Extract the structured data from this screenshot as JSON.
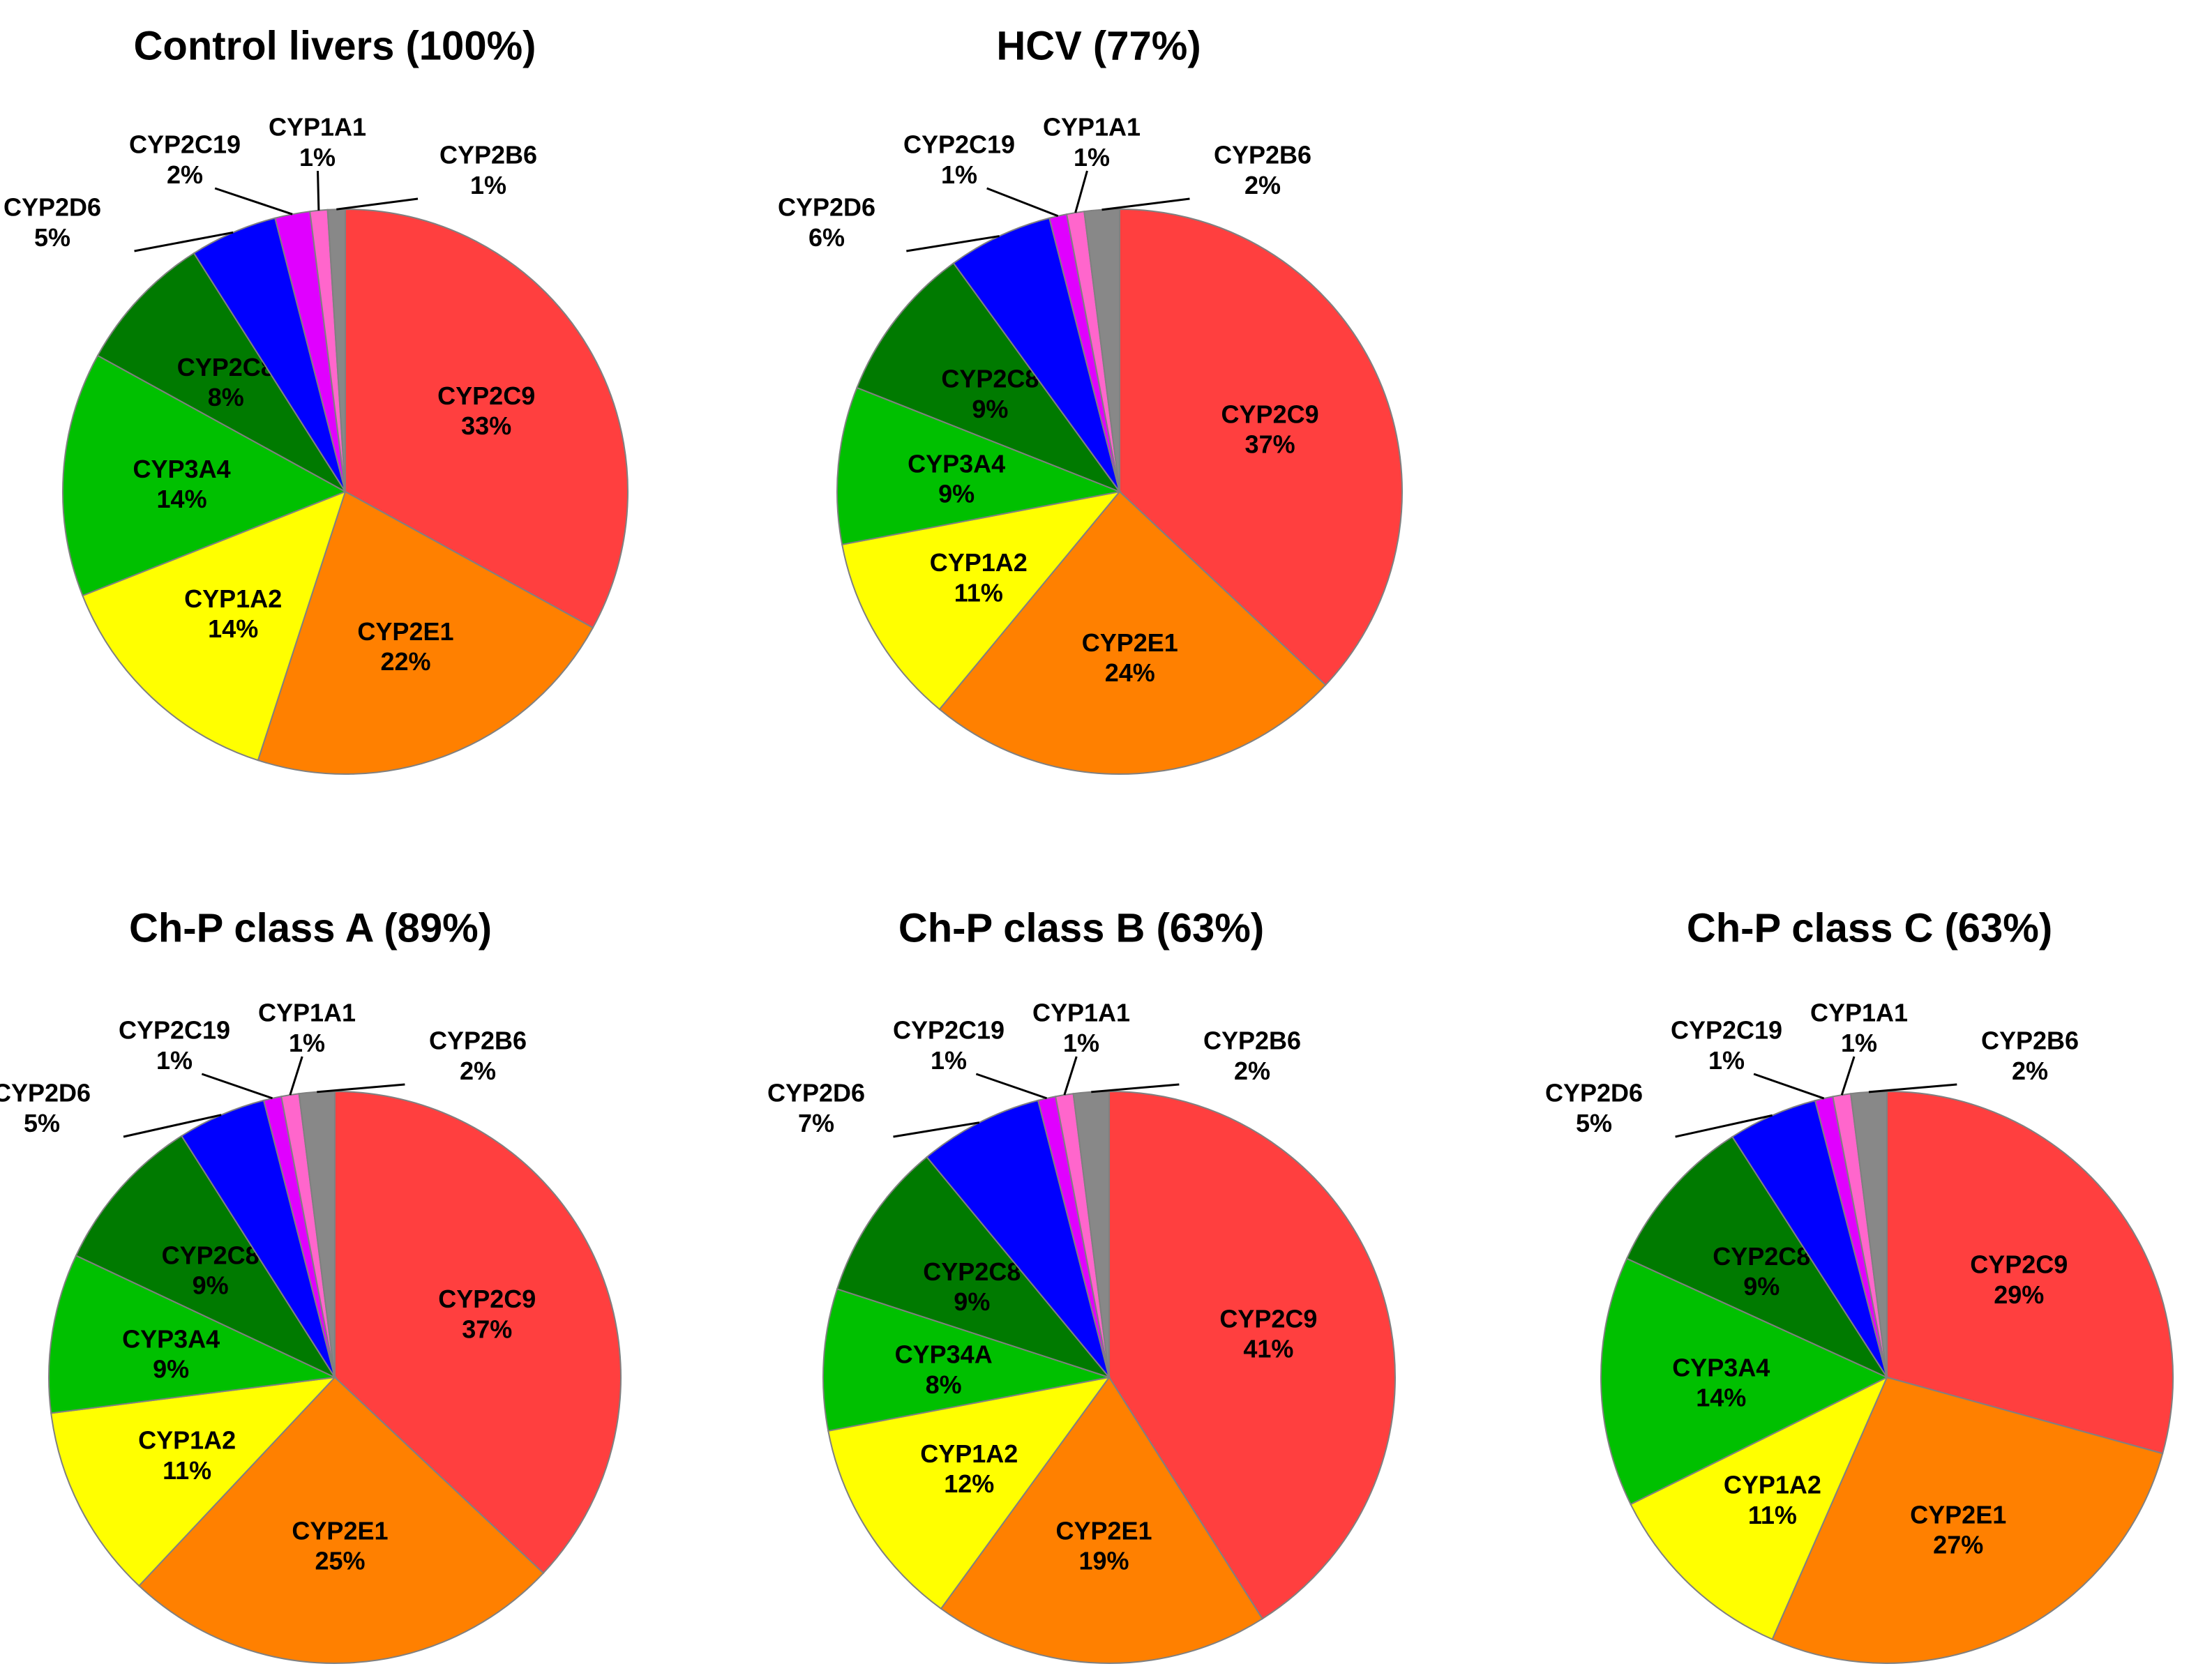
{
  "chart_data": [
    {
      "type": "pie",
      "title": "Control livers (100%)",
      "slices": [
        {
          "label": "CYP2C9",
          "value": 33,
          "value_label": "33%",
          "color": "#ff3f3f",
          "label_pos": "inside"
        },
        {
          "label": "CYP2E1",
          "value": 22,
          "value_label": "22%",
          "color": "#ff8000",
          "label_pos": "inside"
        },
        {
          "label": "CYP1A2",
          "value": 14,
          "value_label": "14%",
          "color": "#ffff00",
          "label_pos": "inside"
        },
        {
          "label": "CYP3A4",
          "value": 14,
          "value_label": "14%",
          "color": "#00c000",
          "label_pos": "inside"
        },
        {
          "label": "CYP2C8",
          "value": 8,
          "value_label": "8%",
          "color": "#007a00",
          "label_pos": "inside"
        },
        {
          "label": "CYP2D6",
          "value": 5,
          "value_label": "5%",
          "color": "#0000ff",
          "label_pos": "outside"
        },
        {
          "label": "CYP2C19",
          "value": 2,
          "value_label": "2%",
          "color": "#e000ff",
          "label_pos": "outside"
        },
        {
          "label": "CYP1A1",
          "value": 1,
          "value_label": "1%",
          "color": "#ff66cc",
          "label_pos": "outside"
        },
        {
          "label": "CYP2B6",
          "value": 1,
          "value_label": "1%",
          "color": "#888888",
          "label_pos": "outside"
        }
      ]
    },
    {
      "type": "pie",
      "title": "HCV (77%)",
      "slices": [
        {
          "label": "CYP2C9",
          "value": 37,
          "value_label": "37%",
          "color": "#ff3f3f",
          "label_pos": "inside"
        },
        {
          "label": "CYP2E1",
          "value": 24,
          "value_label": "24%",
          "color": "#ff8000",
          "label_pos": "inside"
        },
        {
          "label": "CYP1A2",
          "value": 11,
          "value_label": "11%",
          "color": "#ffff00",
          "label_pos": "inside"
        },
        {
          "label": "CYP3A4",
          "value": 9,
          "value_label": "9%",
          "color": "#00c000",
          "label_pos": "inside"
        },
        {
          "label": "CYP2C8",
          "value": 9,
          "value_label": "9%",
          "color": "#007a00",
          "label_pos": "inside"
        },
        {
          "label": "CYP2D6",
          "value": 6,
          "value_label": "6%",
          "color": "#0000ff",
          "label_pos": "outside"
        },
        {
          "label": "CYP2C19",
          "value": 1,
          "value_label": "1%",
          "color": "#e000ff",
          "label_pos": "outside"
        },
        {
          "label": "CYP1A1",
          "value": 1,
          "value_label": "1%",
          "color": "#ff66cc",
          "label_pos": "outside"
        },
        {
          "label": "CYP2B6",
          "value": 2,
          "value_label": "2%",
          "color": "#888888",
          "label_pos": "outside"
        }
      ]
    },
    {
      "type": "pie",
      "title": "Ch-P class A (89%)",
      "slices": [
        {
          "label": "CYP2C9",
          "value": 37,
          "value_label": "37%",
          "color": "#ff3f3f",
          "label_pos": "inside"
        },
        {
          "label": "CYP2E1",
          "value": 25,
          "value_label": "25%",
          "color": "#ff8000",
          "label_pos": "inside"
        },
        {
          "label": "CYP1A2",
          "value": 11,
          "value_label": "11%",
          "color": "#ffff00",
          "label_pos": "inside"
        },
        {
          "label": "CYP3A4",
          "value": 9,
          "value_label": "9%",
          "color": "#00c000",
          "label_pos": "inside"
        },
        {
          "label": "CYP2C8",
          "value": 9,
          "value_label": "9%",
          "color": "#007a00",
          "label_pos": "inside"
        },
        {
          "label": "CYP2D6",
          "value": 5,
          "value_label": "5%",
          "color": "#0000ff",
          "label_pos": "outside"
        },
        {
          "label": "CYP2C19",
          "value": 1,
          "value_label": "1%",
          "color": "#e000ff",
          "label_pos": "outside"
        },
        {
          "label": "CYP1A1",
          "value": 1,
          "value_label": "1%",
          "color": "#ff66cc",
          "label_pos": "outside"
        },
        {
          "label": "CYP2B6",
          "value": 2,
          "value_label": "2%",
          "color": "#888888",
          "label_pos": "outside"
        }
      ]
    },
    {
      "type": "pie",
      "title": "Ch-P class B (63%)",
      "slices": [
        {
          "label": "CYP2C9",
          "value": 41,
          "value_label": "41%",
          "color": "#ff3f3f",
          "label_pos": "inside"
        },
        {
          "label": "CYP2E1",
          "value": 19,
          "value_label": "19%",
          "color": "#ff8000",
          "label_pos": "inside"
        },
        {
          "label": "CYP1A2",
          "value": 12,
          "value_label": "12%",
          "color": "#ffff00",
          "label_pos": "inside"
        },
        {
          "label": "CYP34A",
          "value": 8,
          "value_label": "8%",
          "color": "#00c000",
          "label_pos": "inside"
        },
        {
          "label": "CYP2C8",
          "value": 9,
          "value_label": "9%",
          "color": "#007a00",
          "label_pos": "inside"
        },
        {
          "label": "CYP2D6",
          "value": 7,
          "value_label": "7%",
          "color": "#0000ff",
          "label_pos": "outside"
        },
        {
          "label": "CYP2C19",
          "value": 1,
          "value_label": "1%",
          "color": "#e000ff",
          "label_pos": "outside"
        },
        {
          "label": "CYP1A1",
          "value": 1,
          "value_label": "1%",
          "color": "#ff66cc",
          "label_pos": "outside"
        },
        {
          "label": "CYP2B6",
          "value": 2,
          "value_label": "2%",
          "color": "#888888",
          "label_pos": "outside"
        }
      ]
    },
    {
      "type": "pie",
      "title": "Ch-P class C (63%)",
      "slices": [
        {
          "label": "CYP2C9",
          "value": 29,
          "value_label": "29%",
          "color": "#ff3f3f",
          "label_pos": "inside"
        },
        {
          "label": "CYP2E1",
          "value": 27,
          "value_label": "27%",
          "color": "#ff8000",
          "label_pos": "inside"
        },
        {
          "label": "CYP1A2",
          "value": 11,
          "value_label": "11%",
          "color": "#ffff00",
          "label_pos": "inside"
        },
        {
          "label": "CYP3A4",
          "value": 14,
          "value_label": "14%",
          "color": "#00c000",
          "label_pos": "inside"
        },
        {
          "label": "CYP2C8",
          "value": 9,
          "value_label": "9%",
          "color": "#007a00",
          "label_pos": "inside"
        },
        {
          "label": "CYP2D6",
          "value": 5,
          "value_label": "5%",
          "color": "#0000ff",
          "label_pos": "outside"
        },
        {
          "label": "CYP2C19",
          "value": 1,
          "value_label": "1%",
          "color": "#e000ff",
          "label_pos": "outside"
        },
        {
          "label": "CYP1A1",
          "value": 1,
          "value_label": "1%",
          "color": "#ff66cc",
          "label_pos": "outside"
        },
        {
          "label": "CYP2B6",
          "value": 2,
          "value_label": "2%",
          "color": "#888888",
          "label_pos": "outside"
        }
      ]
    }
  ]
}
